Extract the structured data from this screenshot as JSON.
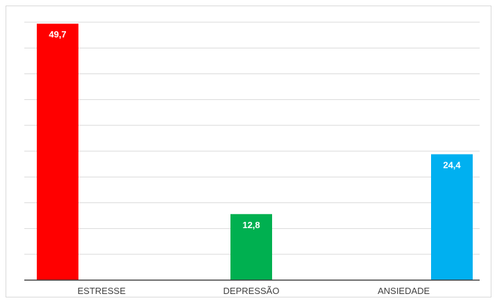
{
  "chart_data": {
    "type": "bar",
    "categories": [
      "ESTRESSE",
      "DEPRESSÃO",
      "ANSIEDADE"
    ],
    "values": [
      49.7,
      12.8,
      24.4
    ],
    "data_labels": [
      "49,7",
      "12,8",
      "24,4"
    ],
    "colors": [
      "#ff0000",
      "#00b050",
      "#00b0f0"
    ],
    "title": "",
    "xlabel": "",
    "ylabel": "",
    "ylim": [
      0,
      50
    ],
    "grid": true,
    "legend": "none"
  }
}
